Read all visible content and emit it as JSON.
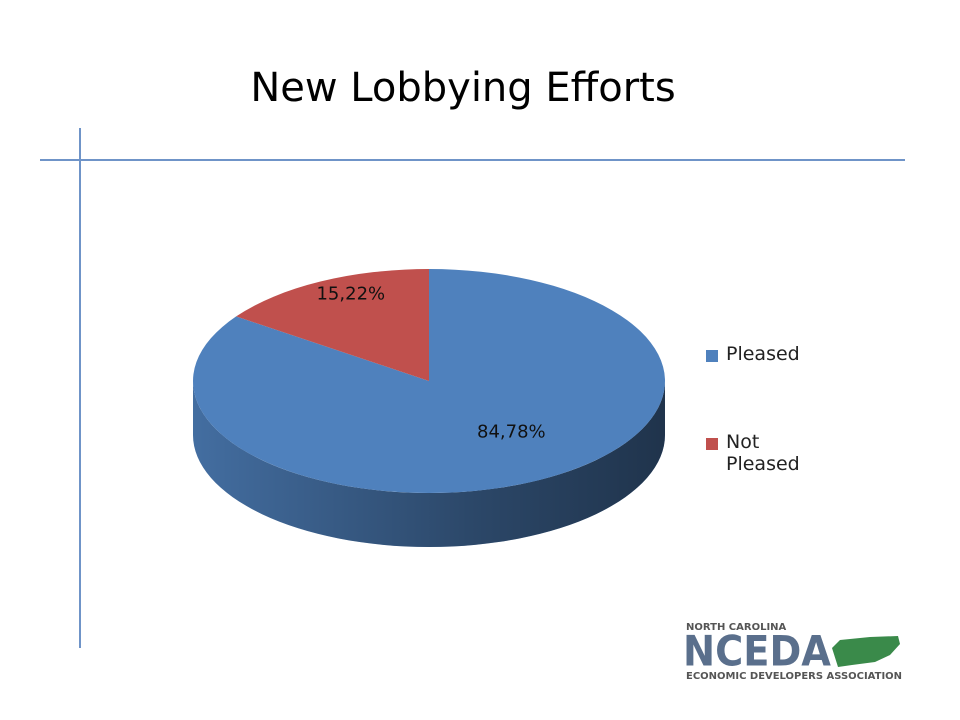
{
  "chart_data": {
    "type": "pie",
    "title": "New Lobbying Efforts",
    "categories": [
      "Pleased",
      "Not Pleased"
    ],
    "series": [
      {
        "values": [
          84.78,
          15.22
        ],
        "value_labels": [
          "84,78%",
          "15,22%"
        ],
        "colors": [
          "#4f81bd",
          "#c0504d"
        ]
      }
    ],
    "legend": "right",
    "three_d": true
  },
  "logo": {
    "top": "NORTH CAROLINA",
    "name": "NCEDA",
    "bottom": "ECONOMIC DEVELOPERS ASSOCIATION"
  }
}
